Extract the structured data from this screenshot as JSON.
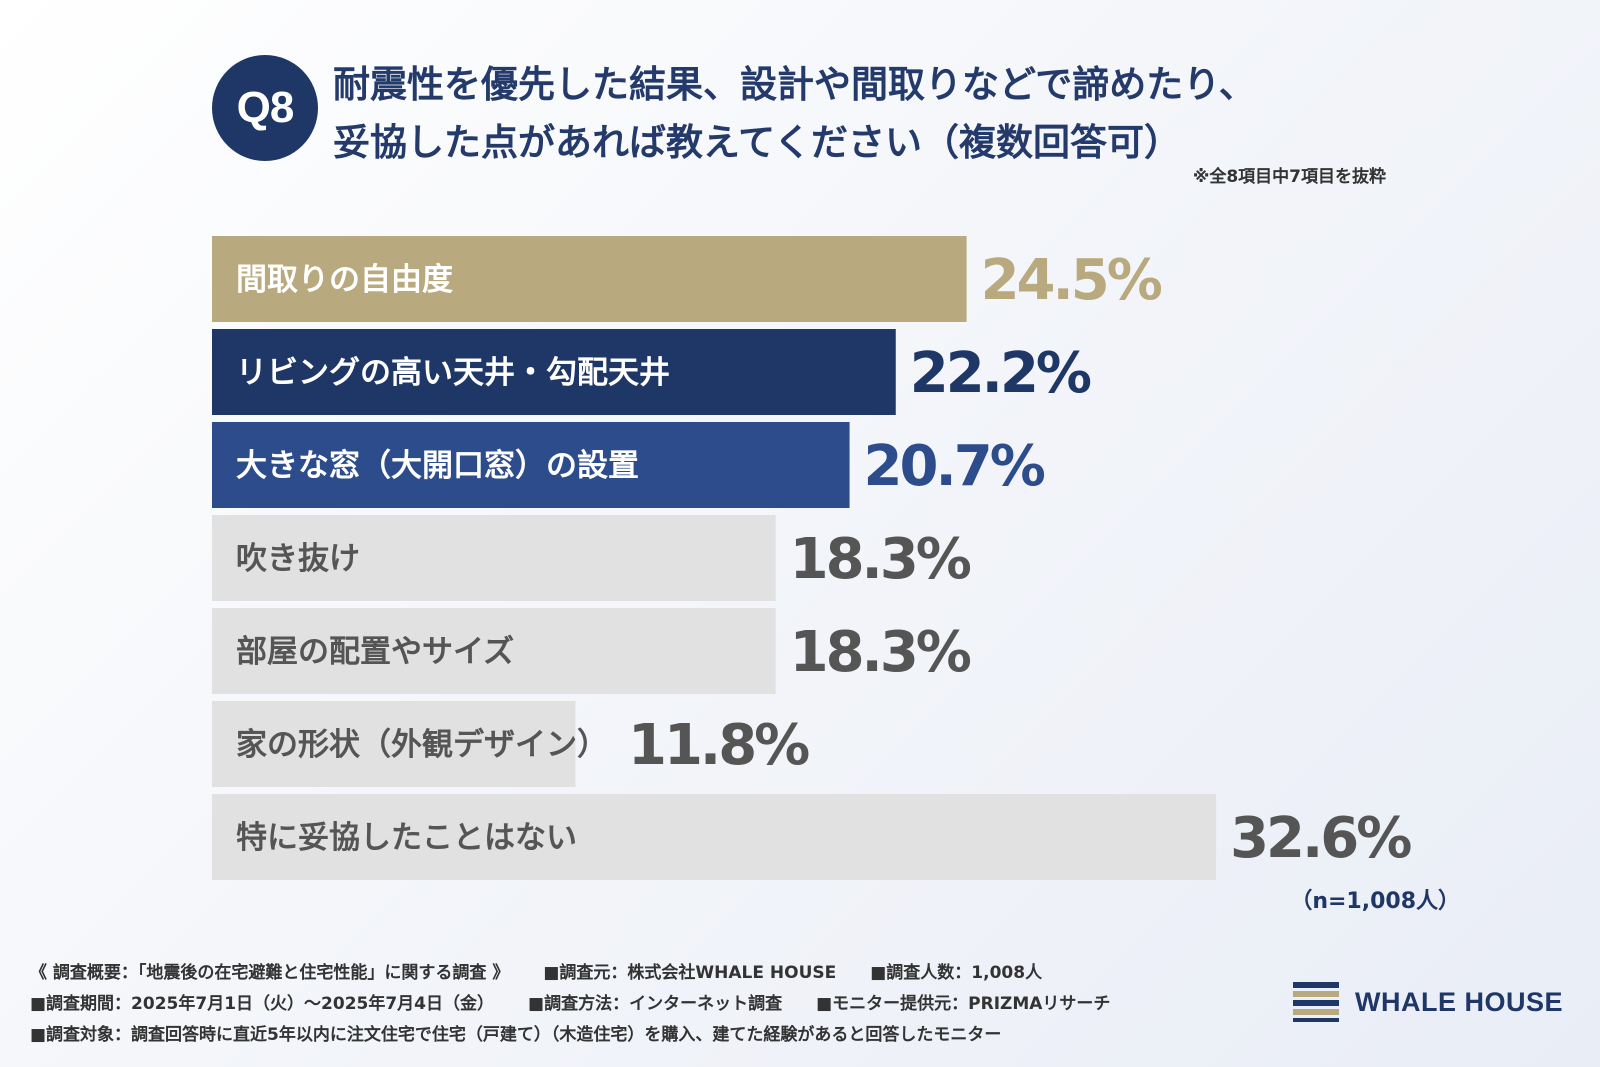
{
  "header": {
    "badge": "Q8",
    "title_line1": "耐震性を優先した結果、設計や間取りなどで諦めたり、",
    "title_line2": "妥協した点があれば教えてください（複数回答可）",
    "note": "※全8項目中7項目を抜粋"
  },
  "chart_data": {
    "type": "bar",
    "orientation": "horizontal",
    "categories": [
      "間取りの自由度",
      "リビングの高い天井・勾配天井",
      "大きな窓（大開口窓）の設置",
      "吹き抜け",
      "部屋の配置やサイズ",
      "家の形状（外観デザイン）",
      "特に妥協したことはない"
    ],
    "values": [
      24.5,
      22.2,
      20.7,
      18.3,
      18.3,
      11.8,
      32.6
    ],
    "value_labels": [
      "24.5%",
      "22.2%",
      "20.7%",
      "18.3%",
      "18.3%",
      "11.8%",
      "32.6%"
    ],
    "bar_colors": [
      "#b8a97e",
      "#1f3766",
      "#2c4c8c",
      "#e1e1e1",
      "#e1e1e1",
      "#e1e1e1",
      "#e1e1e1"
    ],
    "label_colors": [
      "#ffffff",
      "#ffffff",
      "#ffffff",
      "#555555",
      "#555555",
      "#555555",
      "#555555"
    ],
    "value_colors": [
      "#b8a97e",
      "#1f3766",
      "#2c4c8c",
      "#555555",
      "#555555",
      "#555555",
      "#555555"
    ],
    "n_label": "（n=1,008人）"
  },
  "footer": {
    "line1": [
      "《 調査概要：「地震後の在宅避難と住宅性能」に関する調査 》",
      "■調査元：株式会社WHALE HOUSE",
      "■調査人数：1,008人"
    ],
    "line2": [
      "■調査期間：2025年7月1日（火）～2025年7月4日（金）",
      "■調査方法：インターネット調査",
      "■モニター提供元：PRIZMAリサーチ"
    ],
    "line3": [
      "■調査対象：調査回答時に直近5年以内に注文住宅で住宅（戸建て）（木造住宅）を購入、建てた経験があると回答したモニター"
    ]
  },
  "logo": {
    "text": "WHALE HOUSE",
    "colors": [
      "#1f3766",
      "#b8a97e"
    ]
  }
}
